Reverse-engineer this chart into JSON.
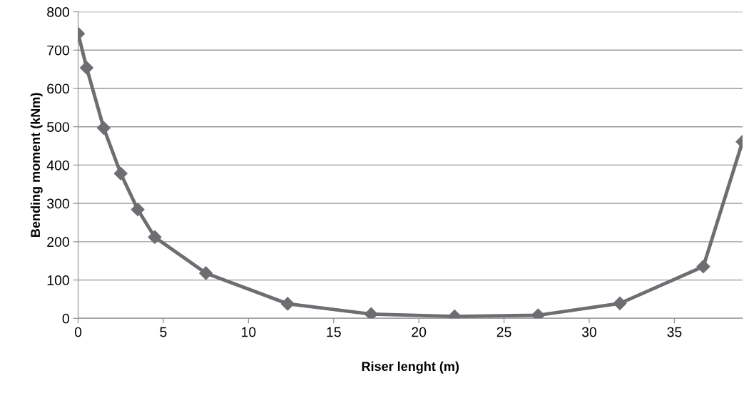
{
  "chart_data": {
    "type": "line",
    "xlabel": "Riser lenght (m)",
    "ylabel": "Bending moment (kNm)",
    "x": [
      0,
      0.5,
      1.5,
      2.5,
      3.5,
      4.5,
      7.5,
      12.3,
      17.2,
      22.1,
      27,
      31.8,
      36.7,
      39
    ],
    "series": [
      {
        "color": "#6d6e71",
        "values": [
          743,
          654,
          497,
          378,
          284,
          212,
          118,
          38,
          11,
          5,
          8,
          39,
          135,
          461
        ]
      }
    ],
    "xlim": [
      0,
      39
    ],
    "xticks": [
      0,
      5,
      10,
      15,
      20,
      25,
      30,
      35
    ],
    "ylim": [
      0,
      800
    ],
    "yticks": [
      0,
      100,
      200,
      300,
      400,
      500,
      600,
      700,
      800
    ],
    "grid": "y",
    "marker": "diamond",
    "line_style": "solid"
  }
}
